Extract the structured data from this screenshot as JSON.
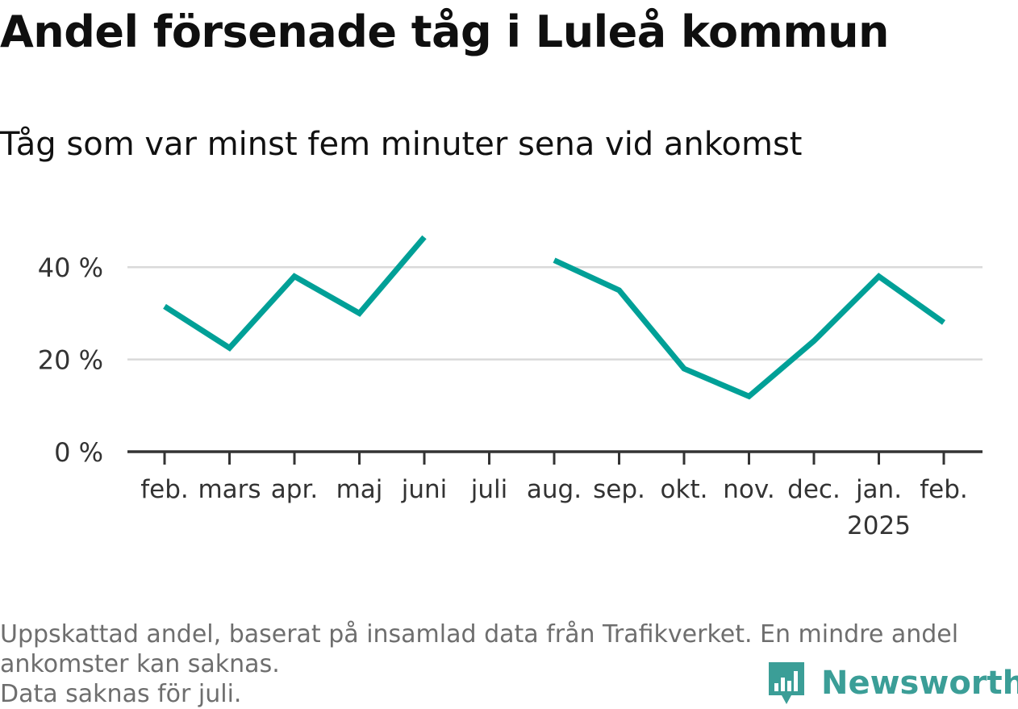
{
  "header": {
    "title": "Andel försenade tåg i Luleå kommun",
    "subtitle": "Tåg som var minst fem minuter sena vid ankomst"
  },
  "footnote": {
    "line1": "Uppskattad andel, baserat på insamlad data från Trafikverket. En mindre andel",
    "line2": "ankomster kan saknas.",
    "line3": "Data saknas för juli."
  },
  "brand": {
    "name": "Newsworthy",
    "icon": "newsworthy-logo-icon"
  },
  "colors": {
    "line": "#00a097",
    "grid": "#d9d9d9",
    "axis": "#333333",
    "brand": "#3b9e97"
  },
  "chart_data": {
    "type": "line",
    "categories": [
      "feb.",
      "mars",
      "apr.",
      "maj",
      "juni",
      "juli",
      "aug.",
      "sep.",
      "okt.",
      "nov.",
      "dec.",
      "jan.",
      "feb."
    ],
    "category_sublabels": [
      "",
      "",
      "",
      "",
      "",
      "",
      "",
      "",
      "",
      "",
      "",
      "2025",
      ""
    ],
    "series": [
      {
        "values": [
          31.5,
          22.5,
          38,
          30,
          46.5,
          null,
          41.5,
          35,
          18,
          12,
          24,
          38,
          28
        ]
      }
    ],
    "yticks": [
      0,
      20,
      40
    ],
    "ytick_labels": [
      "0 %",
      "20 %",
      "40 %"
    ],
    "ylim": [
      0,
      50
    ],
    "grid": true,
    "legend": "none",
    "xlabel": "",
    "ylabel": ""
  }
}
